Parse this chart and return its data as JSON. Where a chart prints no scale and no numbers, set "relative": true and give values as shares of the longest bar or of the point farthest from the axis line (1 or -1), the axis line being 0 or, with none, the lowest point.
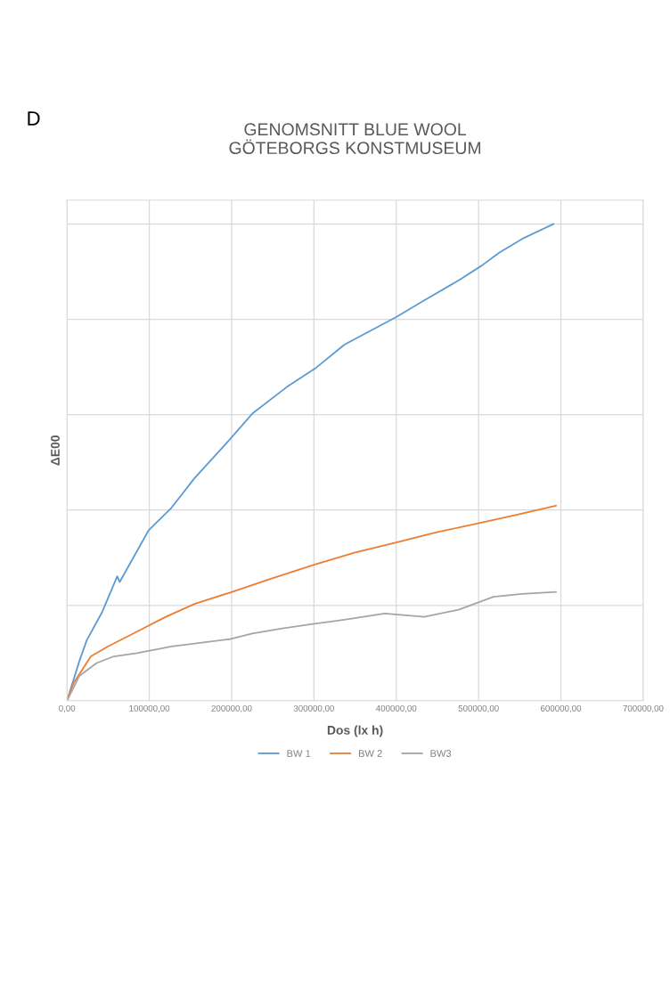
{
  "chart_data": {
    "type": "line",
    "title": "GENOMSNITT BLUE WOOL\nGÖTEBORGS KONSTMUSEUM",
    "xlabel": "Dos (lx h)",
    "ylabel": "ΔE00",
    "annotations": [
      "D"
    ],
    "relative": true,
    "grid": true,
    "legend": "bottom",
    "tick_labels": "x",
    "marker": "none",
    "line_style": "solid",
    "xlim": [
      0,
      700000
    ],
    "xticks": [
      {
        "value": 0,
        "label": "0,00"
      },
      {
        "value": 100000,
        "label": "100000,00"
      },
      {
        "value": 200000,
        "label": "200000,00"
      },
      {
        "value": 300000,
        "label": "300000,00"
      },
      {
        "value": 400000,
        "label": "400000,00"
      },
      {
        "value": 500000,
        "label": "500000,00"
      },
      {
        "value": 600000,
        "label": "600000,00"
      },
      {
        "value": 700000,
        "label": "700000,00"
      }
    ],
    "series": [
      {
        "name": "BW 1",
        "color": "#5b9bd5",
        "x": [
          0,
          15000,
          24000,
          43000,
          61000,
          64000,
          99000,
          127000,
          155000,
          193000,
          225000,
          267000,
          303000,
          337000,
          400000,
          434000,
          476000,
          504000,
          525000,
          553000,
          591000
        ],
        "values": [
          0,
          0.083,
          0.127,
          0.187,
          0.261,
          0.249,
          0.357,
          0.405,
          0.467,
          0.539,
          0.602,
          0.658,
          0.699,
          0.747,
          0.805,
          0.84,
          0.882,
          0.913,
          0.94,
          0.969,
          1.0
        ]
      },
      {
        "name": "BW 2",
        "color": "#ed7d31",
        "x": [
          0,
          8000,
          29000,
          50000,
          85000,
          120000,
          155000,
          200000,
          246000,
          302000,
          350000,
          400000,
          448000,
          497000,
          546000,
          594000
        ],
        "values": [
          0,
          0.037,
          0.093,
          0.114,
          0.145,
          0.176,
          0.203,
          0.228,
          0.255,
          0.286,
          0.311,
          0.332,
          0.353,
          0.371,
          0.39,
          0.409
        ]
      },
      {
        "name": "BW3",
        "color": "#a5a5a5",
        "x": [
          0,
          15000,
          36000,
          57000,
          85000,
          127000,
          155000,
          197000,
          225000,
          260000,
          295000,
          337000,
          386000,
          434000,
          476000,
          518000,
          553000,
          594000
        ],
        "values": [
          0,
          0.052,
          0.079,
          0.093,
          0.1,
          0.114,
          0.12,
          0.129,
          0.141,
          0.151,
          0.16,
          0.17,
          0.183,
          0.176,
          0.191,
          0.218,
          0.224,
          0.228
        ]
      }
    ]
  }
}
